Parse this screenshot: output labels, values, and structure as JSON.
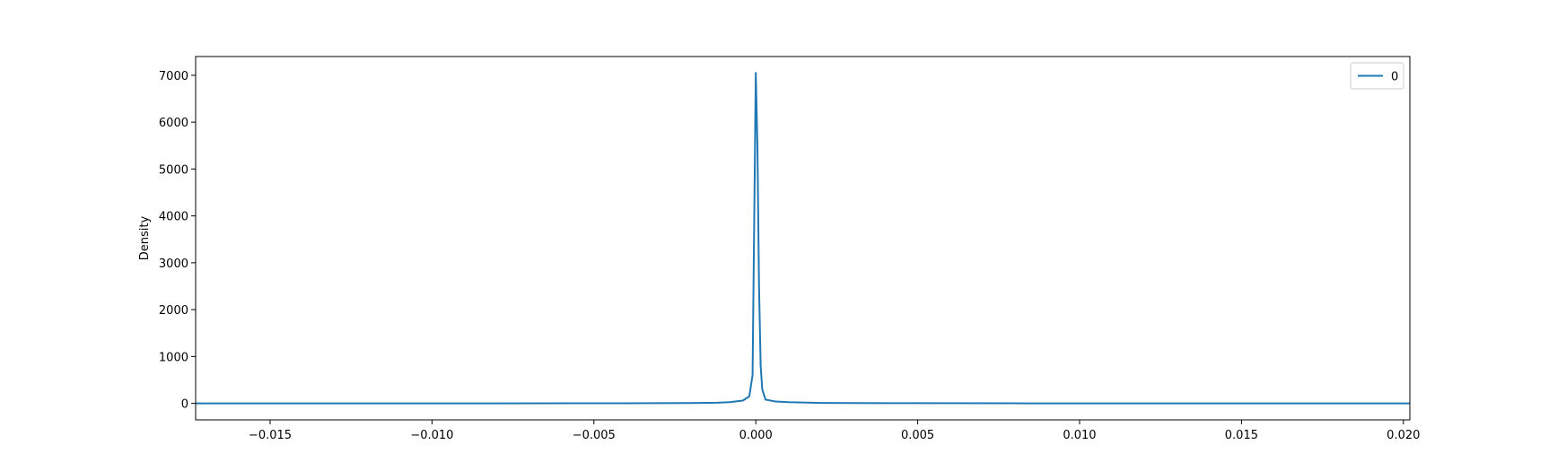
{
  "chart_data": {
    "type": "line",
    "title": "",
    "xlabel": "",
    "ylabel": "Density",
    "xlim": [
      -0.0173,
      0.0202
    ],
    "ylim": [
      -352,
      7400
    ],
    "xticks": [
      -0.015,
      -0.01,
      -0.005,
      0.0,
      0.005,
      0.01,
      0.015,
      0.02
    ],
    "xtick_labels": [
      "−0.015",
      "−0.010",
      "−0.005",
      "0.000",
      "0.005",
      "0.010",
      "0.015",
      "0.020"
    ],
    "yticks": [
      0,
      1000,
      2000,
      3000,
      4000,
      5000,
      6000,
      7000
    ],
    "ytick_labels": [
      "0",
      "1000",
      "2000",
      "3000",
      "4000",
      "5000",
      "6000",
      "7000"
    ],
    "grid": false,
    "legend_position": "top-right",
    "series": [
      {
        "name": "0",
        "color": "#1f77b4",
        "x": [
          -0.0173,
          -0.012,
          -0.008,
          -0.004,
          -0.002,
          -0.0012,
          -0.0008,
          -0.0004,
          -0.0002,
          -0.0001,
          0.0,
          5e-05,
          0.0001,
          0.00015,
          0.0002,
          0.0003,
          0.0006,
          0.001,
          0.002,
          0.004,
          0.008,
          0.012,
          0.016,
          0.0202
        ],
        "y": [
          0,
          0,
          0,
          2,
          8,
          15,
          25,
          60,
          150,
          600,
          7050,
          5500,
          2500,
          800,
          300,
          80,
          40,
          25,
          10,
          4,
          1,
          0,
          0,
          0
        ]
      }
    ]
  }
}
